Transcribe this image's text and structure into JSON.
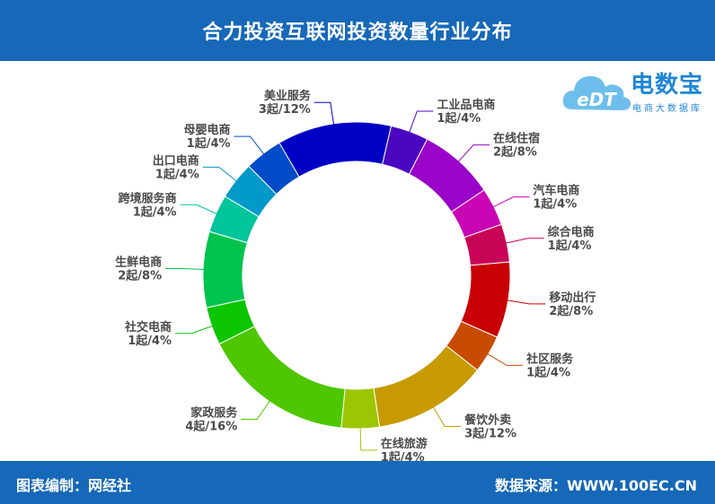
{
  "header": {
    "title": "合力投资互联网投资数量行业分布"
  },
  "footer": {
    "editor": "图表编制：网经社",
    "source": "数据来源：WWW.100EC.CN"
  },
  "logo": {
    "brand": "电数宝",
    "slogan": "电商大数据库",
    "mark": "eDT"
  },
  "chart_data": {
    "type": "pie",
    "style": "donut",
    "title": "合力投资互联网投资数量行业分布",
    "start_angle_deg": 0,
    "direction": "clockwise",
    "slices": [
      {
        "name": "工业品电商",
        "value_label": "1起/4%",
        "count": 1,
        "percent": 4,
        "color": "#4b07c0"
      },
      {
        "name": "在线住宿",
        "value_label": "2起/8%",
        "count": 2,
        "percent": 8,
        "color": "#9a04c8"
      },
      {
        "name": "汽车电商",
        "value_label": "1起/4%",
        "count": 1,
        "percent": 4,
        "color": "#c905b4"
      },
      {
        "name": "综合电商",
        "value_label": "1起/4%",
        "count": 1,
        "percent": 4,
        "color": "#c80456"
      },
      {
        "name": "移动出行",
        "value_label": "2起/8%",
        "count": 2,
        "percent": 8,
        "color": "#c80005"
      },
      {
        "name": "社区服务",
        "value_label": "1起/4%",
        "count": 1,
        "percent": 4,
        "color": "#c84c00"
      },
      {
        "name": "餐饮外卖",
        "value_label": "3起/12%",
        "count": 3,
        "percent": 12,
        "color": "#c69a00"
      },
      {
        "name": "在线旅游",
        "value_label": "1起/4%",
        "count": 1,
        "percent": 4,
        "color": "#9cc602"
      },
      {
        "name": "家政服务",
        "value_label": "4起/16%",
        "count": 4,
        "percent": 16,
        "color": "#4ec600"
      },
      {
        "name": "社交电商",
        "value_label": "1起/4%",
        "count": 1,
        "percent": 4,
        "color": "#0bc600"
      },
      {
        "name": "生鲜电商",
        "value_label": "2起/8%",
        "count": 2,
        "percent": 8,
        "color": "#00c34e"
      },
      {
        "name": "跨境服务商",
        "value_label": "1起/4%",
        "count": 1,
        "percent": 4,
        "color": "#00c49a"
      },
      {
        "name": "出口电商",
        "value_label": "1起/4%",
        "count": 1,
        "percent": 4,
        "color": "#0099c8"
      },
      {
        "name": "母婴电商",
        "value_label": "1起/4%",
        "count": 1,
        "percent": 4,
        "color": "#004cc8"
      },
      {
        "name": "美业服务",
        "value_label": "3起/12%",
        "count": 3,
        "percent": 12,
        "color": "#0000c4"
      }
    ]
  }
}
